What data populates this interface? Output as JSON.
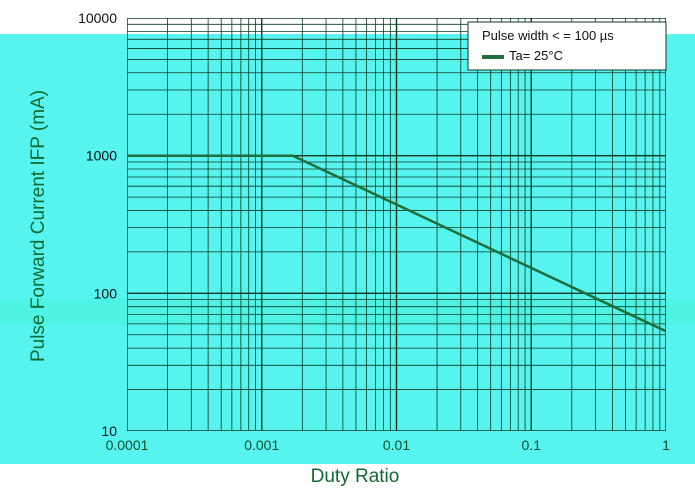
{
  "chart_data": {
    "type": "line",
    "title": "",
    "xlabel": "Duty Ratio",
    "ylabel": "Pulse Forward Current IFP (mA)",
    "x_scale": "log",
    "y_scale": "log",
    "xlim": [
      0.0001,
      1
    ],
    "ylim": [
      10,
      10000
    ],
    "x_ticks": [
      {
        "value": 0.0001,
        "label": "0.0001"
      },
      {
        "value": 0.001,
        "label": "0.001"
      },
      {
        "value": 0.01,
        "label": "0.01"
      },
      {
        "value": 0.1,
        "label": "0.1"
      },
      {
        "value": 1,
        "label": "1"
      }
    ],
    "y_ticks": [
      {
        "value": 10,
        "label": "10"
      },
      {
        "value": 100,
        "label": "100"
      },
      {
        "value": 1000,
        "label": "1000"
      },
      {
        "value": 10000,
        "label": "10000"
      }
    ],
    "grid": true,
    "series": [
      {
        "x": [
          0.0001,
          0.0017,
          1
        ],
        "y": [
          1000,
          1000,
          53
        ]
      }
    ],
    "annotations": {
      "pulse_width": "Pulse width < =  100 µs",
      "ta": "Ta= 25°C"
    },
    "legend_position": "top-right"
  },
  "colors": {
    "plot_band": "#57f3ef",
    "curve": "#1f6e3c",
    "grid": "#0b3a22",
    "axis_title": "#0f6b32"
  }
}
